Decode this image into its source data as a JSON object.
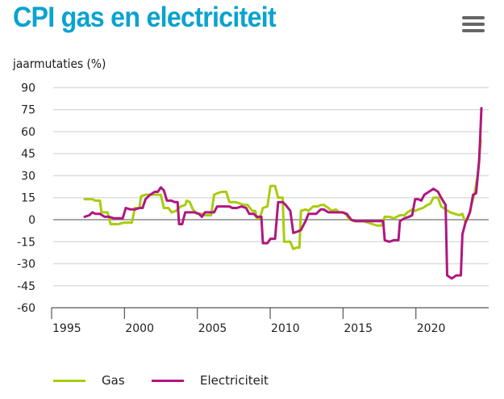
{
  "header": {
    "title": "CPI gas en electriciteit",
    "menu_icon": "hamburger-menu-icon"
  },
  "chart_data": {
    "type": "line",
    "title": "CPI gas en electriciteit",
    "ylabel": "jaarmutaties (%)",
    "xlabel": "",
    "ylim": [
      -60,
      90
    ],
    "yticks": [
      90,
      75,
      60,
      45,
      30,
      15,
      0,
      -15,
      -30,
      -45,
      -60
    ],
    "xlim": [
      1995,
      2021.6
    ],
    "xticks": [
      1995,
      2000,
      2005,
      2010,
      2015,
      2020
    ],
    "grid": true,
    "legend_position": "bottom-left",
    "series": [
      {
        "name": "Gas",
        "color": "#a8cc0e",
        "points": [
          [
            1996.3,
            14
          ],
          [
            1996.8,
            14
          ],
          [
            1997.0,
            13
          ],
          [
            1997.3,
            13
          ],
          [
            1997.4,
            5
          ],
          [
            1997.8,
            5
          ],
          [
            1998.0,
            -3
          ],
          [
            1998.5,
            -3
          ],
          [
            1998.9,
            -2
          ],
          [
            1999.4,
            -2
          ],
          [
            1999.6,
            8
          ],
          [
            1999.9,
            8
          ],
          [
            2000.0,
            16
          ],
          [
            2000.3,
            17
          ],
          [
            2000.6,
            17
          ],
          [
            2001.0,
            17
          ],
          [
            2001.3,
            17
          ],
          [
            2001.5,
            8
          ],
          [
            2001.8,
            8
          ],
          [
            2002.0,
            5
          ],
          [
            2002.3,
            6
          ],
          [
            2002.6,
            9
          ],
          [
            2002.9,
            10
          ],
          [
            2003.0,
            13
          ],
          [
            2003.2,
            12
          ],
          [
            2003.4,
            7
          ],
          [
            2003.7,
            4
          ],
          [
            2004.0,
            4
          ],
          [
            2004.2,
            3
          ],
          [
            2004.6,
            3
          ],
          [
            2004.8,
            17
          ],
          [
            2005.0,
            18
          ],
          [
            2005.3,
            19
          ],
          [
            2005.6,
            19
          ],
          [
            2005.8,
            12
          ],
          [
            2006.2,
            12
          ],
          [
            2006.5,
            11
          ],
          [
            2006.8,
            10
          ],
          [
            2007.0,
            10
          ],
          [
            2007.3,
            6
          ],
          [
            2007.5,
            6
          ],
          [
            2007.6,
            1
          ],
          [
            2007.8,
            1
          ],
          [
            2008.0,
            8
          ],
          [
            2008.3,
            9
          ],
          [
            2008.5,
            23
          ],
          [
            2008.8,
            23
          ],
          [
            2009.0,
            15
          ],
          [
            2009.3,
            15
          ],
          [
            2009.4,
            -15
          ],
          [
            2009.8,
            -15
          ],
          [
            2010.0,
            -20
          ],
          [
            2010.2,
            -19
          ],
          [
            2010.4,
            -19
          ],
          [
            2010.5,
            6
          ],
          [
            2010.8,
            7
          ],
          [
            2011.0,
            6
          ],
          [
            2011.3,
            9
          ],
          [
            2011.6,
            9
          ],
          [
            2011.8,
            10
          ],
          [
            2012.0,
            10
          ],
          [
            2012.3,
            8
          ],
          [
            2012.5,
            6
          ],
          [
            2012.8,
            7
          ],
          [
            2013.0,
            5
          ],
          [
            2013.3,
            5
          ],
          [
            2013.5,
            3
          ],
          [
            2013.7,
            0
          ],
          [
            2014.0,
            -1
          ],
          [
            2014.3,
            -1
          ],
          [
            2014.6,
            -1
          ],
          [
            2014.9,
            -2
          ],
          [
            2015.2,
            -3
          ],
          [
            2015.5,
            -4
          ],
          [
            2015.8,
            -4
          ],
          [
            2016.0,
            2
          ],
          [
            2016.3,
            2
          ],
          [
            2016.6,
            1
          ],
          [
            2016.8,
            2
          ],
          [
            2017.0,
            3
          ],
          [
            2017.3,
            3
          ],
          [
            2017.5,
            5
          ],
          [
            2017.8,
            7
          ],
          [
            2018.0,
            6
          ],
          [
            2018.2,
            7
          ],
          [
            2018.5,
            8
          ],
          [
            2018.8,
            10
          ],
          [
            2019.0,
            11
          ],
          [
            2019.2,
            15
          ],
          [
            2019.5,
            15
          ],
          [
            2019.7,
            9
          ],
          [
            2020.0,
            7
          ],
          [
            2020.3,
            5
          ],
          [
            2020.6,
            4
          ],
          [
            2020.9,
            3
          ],
          [
            2021.1,
            4
          ],
          [
            2021.3,
            -2
          ],
          [
            2021.5,
            2
          ],
          [
            2021.7,
            10
          ],
          [
            2021.9,
            18
          ],
          [
            2022.1,
            30
          ],
          [
            2022.3,
            54
          ]
        ]
      },
      {
        "name": "Electriciteit",
        "color": "#b0177f",
        "points": [
          [
            1996.3,
            2
          ],
          [
            1996.6,
            3
          ],
          [
            1996.8,
            5
          ],
          [
            1997.0,
            4
          ],
          [
            1997.3,
            4
          ],
          [
            1997.6,
            2
          ],
          [
            1997.9,
            2
          ],
          [
            1998.2,
            1
          ],
          [
            1998.5,
            1
          ],
          [
            1998.8,
            1
          ],
          [
            1999.0,
            8
          ],
          [
            1999.3,
            7
          ],
          [
            1999.6,
            7
          ],
          [
            1999.9,
            8
          ],
          [
            2000.1,
            8
          ],
          [
            2000.3,
            14
          ],
          [
            2000.6,
            17
          ],
          [
            2000.9,
            19
          ],
          [
            2001.1,
            19
          ],
          [
            2001.3,
            22
          ],
          [
            2001.5,
            20
          ],
          [
            2001.7,
            13
          ],
          [
            2002.0,
            13
          ],
          [
            2002.2,
            12
          ],
          [
            2002.4,
            12
          ],
          [
            2002.5,
            -3
          ],
          [
            2002.7,
            -3
          ],
          [
            2002.9,
            5
          ],
          [
            2003.2,
            5
          ],
          [
            2003.5,
            5
          ],
          [
            2003.8,
            4
          ],
          [
            2004.0,
            2
          ],
          [
            2004.2,
            5
          ],
          [
            2004.5,
            5
          ],
          [
            2004.8,
            5
          ],
          [
            2005.0,
            9
          ],
          [
            2005.3,
            9
          ],
          [
            2005.6,
            9
          ],
          [
            2005.8,
            9
          ],
          [
            2006.0,
            8
          ],
          [
            2006.3,
            8
          ],
          [
            2006.6,
            9
          ],
          [
            2006.9,
            8
          ],
          [
            2007.1,
            4
          ],
          [
            2007.4,
            4
          ],
          [
            2007.6,
            2
          ],
          [
            2007.9,
            2
          ],
          [
            2008.0,
            -16
          ],
          [
            2008.3,
            -16
          ],
          [
            2008.5,
            -13
          ],
          [
            2008.8,
            -13
          ],
          [
            2009.0,
            12
          ],
          [
            2009.3,
            12
          ],
          [
            2009.5,
            10
          ],
          [
            2009.8,
            6
          ],
          [
            2010.0,
            -9
          ],
          [
            2010.3,
            -8
          ],
          [
            2010.5,
            -7
          ],
          [
            2010.8,
            -1
          ],
          [
            2011.0,
            4
          ],
          [
            2011.3,
            4
          ],
          [
            2011.5,
            4
          ],
          [
            2011.8,
            7
          ],
          [
            2012.0,
            7
          ],
          [
            2012.3,
            5
          ],
          [
            2012.6,
            5
          ],
          [
            2012.9,
            5
          ],
          [
            2013.2,
            5
          ],
          [
            2013.5,
            4
          ],
          [
            2013.8,
            0
          ],
          [
            2014.1,
            -1
          ],
          [
            2014.4,
            -1
          ],
          [
            2014.7,
            -1
          ],
          [
            2015.0,
            -1
          ],
          [
            2015.3,
            -1
          ],
          [
            2015.6,
            -1
          ],
          [
            2015.9,
            -1
          ],
          [
            2016.0,
            -14
          ],
          [
            2016.3,
            -15
          ],
          [
            2016.6,
            -14
          ],
          [
            2016.9,
            -14
          ],
          [
            2017.0,
            -1
          ],
          [
            2017.3,
            1
          ],
          [
            2017.6,
            2
          ],
          [
            2017.8,
            3
          ],
          [
            2018.0,
            14
          ],
          [
            2018.2,
            14
          ],
          [
            2018.4,
            13
          ],
          [
            2018.6,
            17
          ],
          [
            2018.9,
            19
          ],
          [
            2019.2,
            21
          ],
          [
            2019.5,
            19
          ],
          [
            2019.7,
            15
          ],
          [
            2020.0,
            10
          ],
          [
            2020.1,
            -38
          ],
          [
            2020.4,
            -40
          ],
          [
            2020.7,
            -38
          ],
          [
            2021.0,
            -38
          ],
          [
            2021.1,
            -10
          ],
          [
            2021.3,
            -2
          ],
          [
            2021.6,
            5
          ],
          [
            2021.8,
            17
          ],
          [
            2022.0,
            18
          ],
          [
            2022.2,
            40
          ],
          [
            2022.35,
            76
          ]
        ]
      }
    ]
  },
  "legend": {
    "items": [
      {
        "label": "Gas",
        "color": "#a8cc0e"
      },
      {
        "label": "Electriciteit",
        "color": "#b0177f"
      }
    ]
  }
}
